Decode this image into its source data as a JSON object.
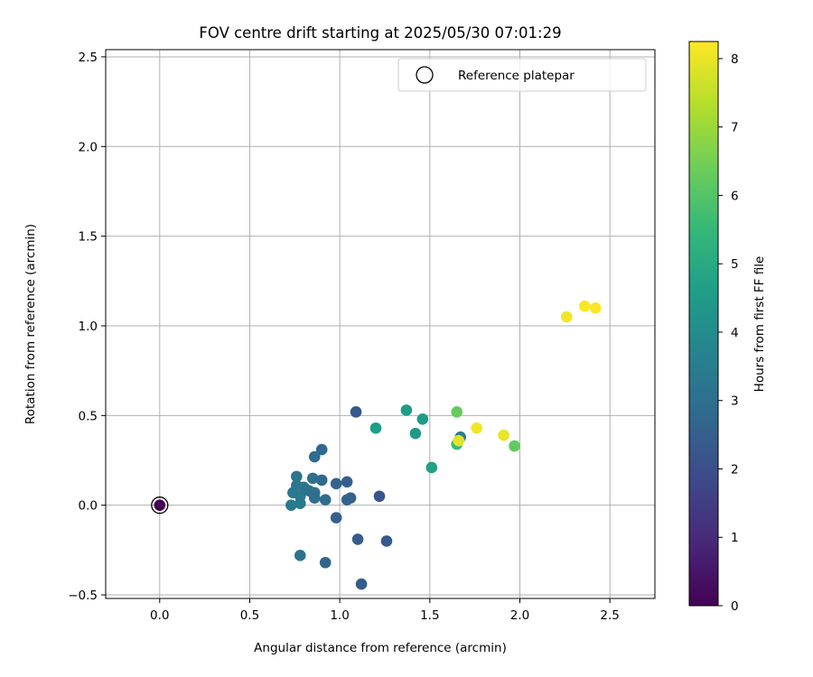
{
  "chart_data": {
    "type": "scatter",
    "title": "FOV centre drift starting at 2025/05/30 07:01:29",
    "xlabel": "Angular distance from reference (arcmin)",
    "ylabel": "Rotation from reference (arcmin)",
    "xlim": [
      -0.3,
      2.75
    ],
    "ylim": [
      -0.52,
      2.54
    ],
    "xticks": [
      "0.0",
      "0.5",
      "1.0",
      "1.5",
      "2.0",
      "2.5"
    ],
    "xtick_values": [
      0.0,
      0.5,
      1.0,
      1.5,
      2.0,
      2.5
    ],
    "yticks": [
      "−0.5",
      "0.0",
      "0.5",
      "1.0",
      "1.5",
      "2.0",
      "2.5"
    ],
    "ytick_values": [
      -0.5,
      0.0,
      0.5,
      1.0,
      1.5,
      2.0,
      2.5
    ],
    "grid": true,
    "legend": {
      "placement": "top-right",
      "entries": [
        "Reference platepar"
      ]
    },
    "colorbar": {
      "label": "Hours from first FF file",
      "range": [
        0,
        8.25
      ],
      "ticks": [
        "0",
        "1",
        "2",
        "3",
        "4",
        "5",
        "6",
        "7",
        "8"
      ],
      "tick_values": [
        0,
        1,
        2,
        3,
        4,
        5,
        6,
        7,
        8
      ],
      "colormap": "viridis",
      "stops": [
        "#440154",
        "#482878",
        "#3e4989",
        "#31688e",
        "#26828e",
        "#1f9e89",
        "#35b779",
        "#6ece58",
        "#b5de2b",
        "#fde725"
      ]
    },
    "reference_point": {
      "x": 0.0,
      "y": 0.0,
      "hours": 0.0
    },
    "points": [
      {
        "x": 0.0,
        "y": 0.0,
        "hours": 0.0
      },
      {
        "x": 1.09,
        "y": 0.52,
        "hours": 2.3
      },
      {
        "x": 0.86,
        "y": 0.27,
        "hours": 2.9
      },
      {
        "x": 0.9,
        "y": 0.31,
        "hours": 2.8
      },
      {
        "x": 0.76,
        "y": 0.16,
        "hours": 3.2
      },
      {
        "x": 0.85,
        "y": 0.15,
        "hours": 3.0
      },
      {
        "x": 0.9,
        "y": 0.14,
        "hours": 2.8
      },
      {
        "x": 0.98,
        "y": 0.12,
        "hours": 2.6
      },
      {
        "x": 1.04,
        "y": 0.13,
        "hours": 2.5
      },
      {
        "x": 0.76,
        "y": 0.11,
        "hours": 3.3
      },
      {
        "x": 0.8,
        "y": 0.1,
        "hours": 3.2
      },
      {
        "x": 0.74,
        "y": 0.07,
        "hours": 3.3
      },
      {
        "x": 0.83,
        "y": 0.08,
        "hours": 3.1
      },
      {
        "x": 0.86,
        "y": 0.07,
        "hours": 3.1
      },
      {
        "x": 0.78,
        "y": 0.05,
        "hours": 3.3
      },
      {
        "x": 0.86,
        "y": 0.04,
        "hours": 3.0
      },
      {
        "x": 0.92,
        "y": 0.03,
        "hours": 2.9
      },
      {
        "x": 1.04,
        "y": 0.03,
        "hours": 2.6
      },
      {
        "x": 1.06,
        "y": 0.04,
        "hours": 2.6
      },
      {
        "x": 0.73,
        "y": 0.0,
        "hours": 3.4
      },
      {
        "x": 0.78,
        "y": 0.01,
        "hours": 3.3
      },
      {
        "x": 1.22,
        "y": 0.05,
        "hours": 2.2
      },
      {
        "x": 0.98,
        "y": -0.07,
        "hours": 2.5
      },
      {
        "x": 1.1,
        "y": -0.19,
        "hours": 2.4
      },
      {
        "x": 1.26,
        "y": -0.2,
        "hours": 2.3
      },
      {
        "x": 0.78,
        "y": -0.28,
        "hours": 3.1
      },
      {
        "x": 0.92,
        "y": -0.32,
        "hours": 2.6
      },
      {
        "x": 1.12,
        "y": -0.44,
        "hours": 2.4
      },
      {
        "x": 1.2,
        "y": 0.43,
        "hours": 4.6
      },
      {
        "x": 1.37,
        "y": 0.53,
        "hours": 4.5
      },
      {
        "x": 1.46,
        "y": 0.48,
        "hours": 4.5
      },
      {
        "x": 1.42,
        "y": 0.4,
        "hours": 4.4
      },
      {
        "x": 1.51,
        "y": 0.21,
        "hours": 4.7
      },
      {
        "x": 1.65,
        "y": 0.52,
        "hours": 6.3
      },
      {
        "x": 1.67,
        "y": 0.38,
        "hours": 3.6
      },
      {
        "x": 1.65,
        "y": 0.34,
        "hours": 5.6
      },
      {
        "x": 1.66,
        "y": 0.36,
        "hours": 7.9
      },
      {
        "x": 1.76,
        "y": 0.43,
        "hours": 8.1
      },
      {
        "x": 1.91,
        "y": 0.39,
        "hours": 8.0
      },
      {
        "x": 1.97,
        "y": 0.33,
        "hours": 6.2
      },
      {
        "x": 2.26,
        "y": 1.05,
        "hours": 8.1
      },
      {
        "x": 2.36,
        "y": 1.11,
        "hours": 8.2
      },
      {
        "x": 2.42,
        "y": 1.1,
        "hours": 8.2
      }
    ]
  }
}
